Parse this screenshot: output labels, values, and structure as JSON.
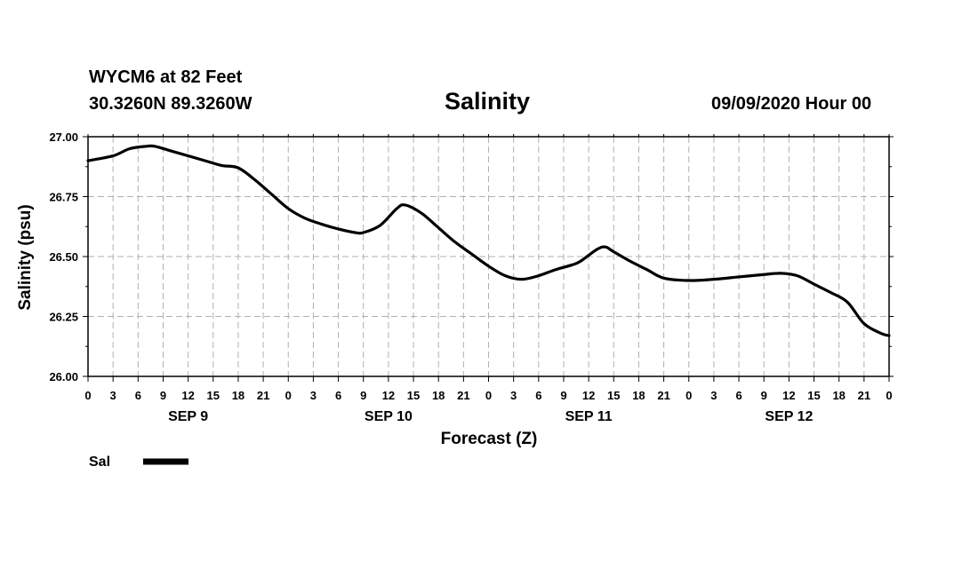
{
  "header": {
    "station": "WYCM6 at 82 Feet",
    "coords": "30.3260N 89.3260W",
    "title": "Salinity",
    "datetime": "09/09/2020 Hour 00"
  },
  "chart_data": {
    "type": "line",
    "title": "Salinity",
    "xlabel": "Forecast (Z)",
    "ylabel": "Salinity (psu)",
    "ylim": [
      26.0,
      27.0
    ],
    "xlim": [
      0,
      96
    ],
    "y_ticks": [
      "26.00",
      "26.25",
      "26.50",
      "26.75",
      "27.00"
    ],
    "x_tick_labels": [
      "0",
      "3",
      "6",
      "9",
      "12",
      "15",
      "18",
      "21",
      "0",
      "3",
      "6",
      "9",
      "12",
      "15",
      "18",
      "21",
      "0",
      "3",
      "6",
      "9",
      "12",
      "15",
      "18",
      "21",
      "0",
      "3",
      "6",
      "9",
      "12",
      "15",
      "18",
      "21",
      "0"
    ],
    "day_labels": [
      "SEP 9",
      "SEP 10",
      "SEP 11",
      "SEP 12"
    ],
    "grid": true,
    "legend": {
      "position": "bottom-left",
      "entries": [
        "Sal"
      ]
    },
    "series": [
      {
        "name": "Sal",
        "color": "#000000",
        "x": [
          0,
          3,
          5,
          7,
          8,
          10,
          12,
          14,
          16,
          18,
          20,
          22,
          24,
          26,
          28,
          30,
          32,
          33,
          35,
          37,
          38,
          40,
          42,
          44,
          46,
          48,
          50,
          52,
          54,
          56,
          58,
          59,
          61,
          62,
          63,
          65,
          67,
          69,
          72,
          75,
          78,
          81,
          83,
          85,
          87,
          89,
          91,
          93,
          95,
          96
        ],
        "y": [
          26.9,
          26.92,
          26.95,
          26.96,
          26.96,
          26.94,
          26.92,
          26.9,
          26.88,
          26.87,
          26.82,
          26.76,
          26.7,
          26.66,
          26.635,
          26.615,
          26.6,
          26.6,
          26.63,
          26.7,
          26.715,
          26.68,
          26.62,
          26.56,
          26.51,
          26.46,
          26.42,
          26.405,
          26.42,
          26.445,
          26.465,
          26.48,
          26.53,
          26.54,
          26.52,
          26.48,
          26.445,
          26.41,
          26.4,
          26.405,
          26.415,
          26.425,
          26.43,
          26.42,
          26.385,
          26.35,
          26.31,
          26.22,
          26.18,
          26.17
        ]
      }
    ]
  }
}
